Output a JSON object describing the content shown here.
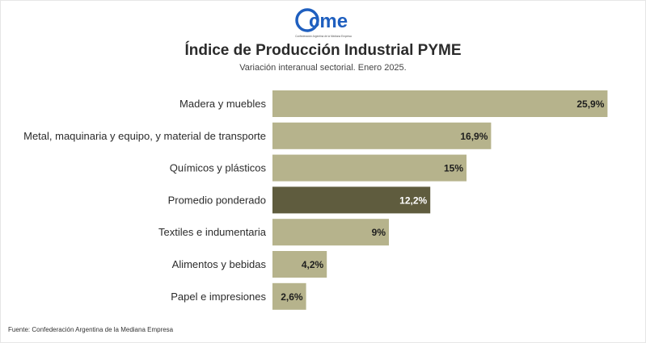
{
  "header": {
    "logo_text": "cme",
    "logo_caption": "Confederación Argentina de la Mediana Empresa",
    "title": "Índice de Producción Industrial PYME",
    "subtitle": "Variación interanual sectorial. Enero 2025."
  },
  "footer": {
    "source": "Fuente: Confederación Argentina de la Mediana Empresa"
  },
  "colors": {
    "bar": "#b6b38c",
    "highlight": "#5f5c3e",
    "logo_blue": "#1f5fbf"
  },
  "chart_data": {
    "type": "bar",
    "orientation": "horizontal",
    "categories": [
      "Madera y muebles",
      "Metal, maquinaria y equipo, y material de transporte",
      "Químicos y plásticos",
      "Promedio ponderado",
      "Textiles e indumentaria",
      "Alimentos y bebidas",
      "Papel e impresiones"
    ],
    "values": [
      25.9,
      16.9,
      15,
      12.2,
      9,
      4.2,
      2.6
    ],
    "value_labels": [
      "25,9%",
      "16,9%",
      "15%",
      "12,2%",
      "9%",
      "4,2%",
      "2,6%"
    ],
    "highlight_category": "Promedio ponderado",
    "xlim": [
      0,
      26
    ],
    "grid": false,
    "legend": "none"
  }
}
